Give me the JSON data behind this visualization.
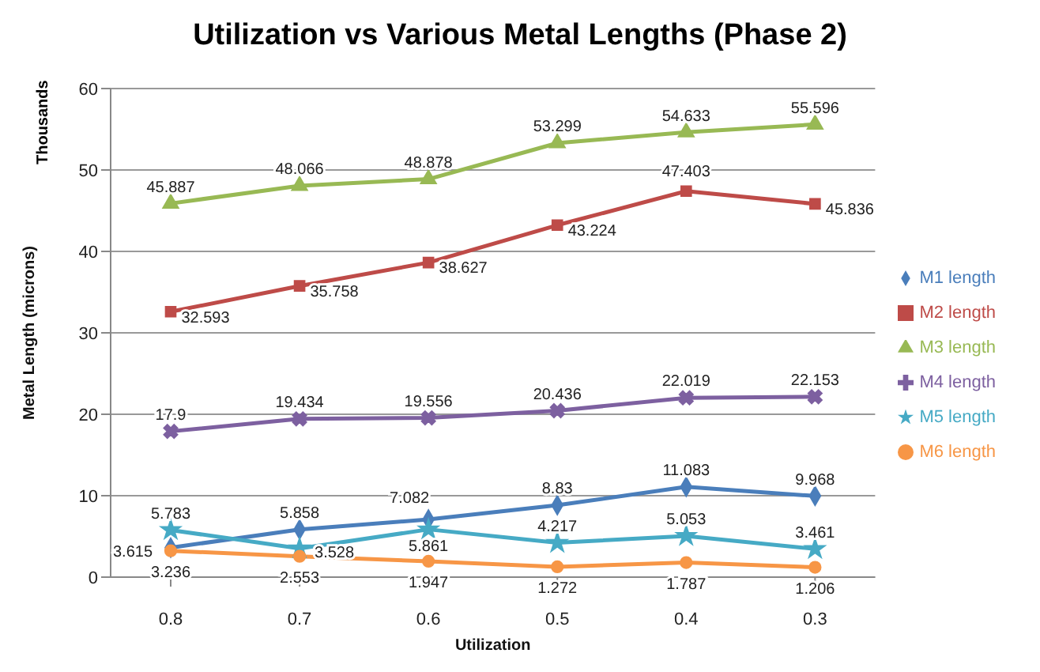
{
  "chart_data": {
    "type": "line",
    "title": "Utilization vs Various Metal Lengths (Phase 2)",
    "xlabel": "Utilization",
    "ylabel": "Metal Length (microns)",
    "annotations": [
      "Thousands"
    ],
    "categories": [
      "0.8",
      "0.7",
      "0.6",
      "0.5",
      "0.4",
      "0.3"
    ],
    "series": [
      {
        "name": "M1 length",
        "color": "#4a7ebb",
        "marker": "diamond",
        "values": [
          3.615,
          5.858,
          7.082,
          8.83,
          11.083,
          9.968
        ]
      },
      {
        "name": "M2 length",
        "color": "#be4b48",
        "marker": "square",
        "values": [
          32.593,
          35.758,
          38.627,
          43.224,
          47.403,
          45.836
        ]
      },
      {
        "name": "M3 length",
        "color": "#98b954",
        "marker": "triangle",
        "values": [
          45.887,
          48.066,
          48.878,
          53.299,
          54.633,
          55.596
        ]
      },
      {
        "name": "M4 length",
        "color": "#7d60a0",
        "marker": "cross",
        "values": [
          17.9,
          19.434,
          19.556,
          20.436,
          22.019,
          22.153
        ]
      },
      {
        "name": "M5 length",
        "color": "#46aac5",
        "marker": "star",
        "values": [
          5.783,
          3.528,
          5.861,
          4.217,
          5.053,
          3.461
        ]
      },
      {
        "name": "M6 length",
        "color": "#f79646",
        "marker": "circle",
        "values": [
          3.236,
          2.553,
          1.947,
          1.272,
          1.787,
          1.206
        ]
      }
    ],
    "ylim": [
      0,
      60
    ],
    "yticks": [
      0,
      10,
      20,
      30,
      40,
      50,
      60
    ],
    "grid": "y",
    "legend": "right",
    "data_labels": true,
    "line_style": "solid"
  }
}
